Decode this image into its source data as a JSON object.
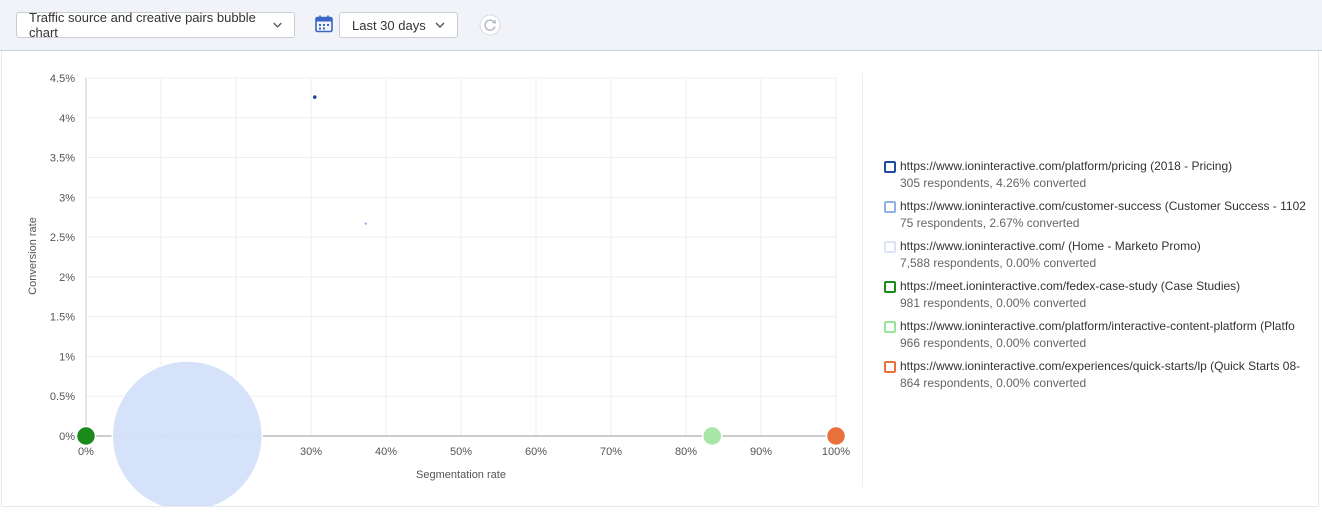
{
  "toolbar": {
    "report_select": "Traffic source and creative pairs bubble chart",
    "date_range": "Last 30 days"
  },
  "icons": {
    "report_chevron": "chevron-down-icon",
    "calendar": "calendar-icon",
    "date_chevron": "chevron-down-icon",
    "refresh": "refresh-icon"
  },
  "chart_data": {
    "type": "scatter",
    "xlabel": "Segmentation rate",
    "ylabel": "Conversion rate",
    "xlim": [
      0,
      100
    ],
    "ylim": [
      0,
      4.5
    ],
    "x_ticks": [
      {
        "value": 0,
        "label": "0%"
      },
      {
        "value": 30,
        "label": "30%"
      },
      {
        "value": 40,
        "label": "40%"
      },
      {
        "value": 50,
        "label": "50%"
      },
      {
        "value": 60,
        "label": "60%"
      },
      {
        "value": 70,
        "label": "70%"
      },
      {
        "value": 80,
        "label": "80%"
      },
      {
        "value": 90,
        "label": "90%"
      },
      {
        "value": 100,
        "label": "100%"
      }
    ],
    "x_grid": [
      0,
      10,
      20,
      30,
      40,
      50,
      60,
      70,
      80,
      90,
      100
    ],
    "y_ticks": [
      {
        "value": 0,
        "label": "0%"
      },
      {
        "value": 0.5,
        "label": "0.5%"
      },
      {
        "value": 1,
        "label": "1%"
      },
      {
        "value": 1.5,
        "label": "1.5%"
      },
      {
        "value": 2,
        "label": "2%"
      },
      {
        "value": 2.5,
        "label": "2.5%"
      },
      {
        "value": 3,
        "label": "3%"
      },
      {
        "value": 3.5,
        "label": "3.5%"
      },
      {
        "value": 4,
        "label": "4%"
      },
      {
        "value": 4.5,
        "label": "4.5%"
      }
    ],
    "grid": true,
    "legend_position": "right",
    "series": [
      {
        "name": "https://www.ioninteractive.com/platform/pricing (2018 - Pricing)",
        "stats": "305 respondents, 4.26% converted",
        "respondents": 305,
        "x": 30.5,
        "y": 4.26,
        "color": "#1e4aa0",
        "fill": "#1e4aa0"
      },
      {
        "name": "https://www.ioninteractive.com/customer-success (Customer Success - 1102",
        "stats": "75 respondents, 2.67% converted",
        "respondents": 75,
        "x": 37.3,
        "y": 2.67,
        "color": "#8fb1e8",
        "fill": "#8fb1e8"
      },
      {
        "name": "https://www.ioninteractive.com/ (Home - Marketo Promo)",
        "stats": "7,588 respondents, 0.00% converted",
        "respondents": 7588,
        "x": 13.5,
        "y": 0,
        "color": "#dbe4f7",
        "fill": "#d4e1f9"
      },
      {
        "name": "https://meet.ioninteractive.com/fedex-case-study (Case Studies)",
        "stats": "981 respondents, 0.00% converted",
        "respondents": 981,
        "x": 0,
        "y": 0,
        "color": "#1a8a1a",
        "fill": "#1a8a1a"
      },
      {
        "name": "https://www.ioninteractive.com/platform/interactive-content-platform (Platfo",
        "stats": "966 respondents, 0.00% converted",
        "respondents": 966,
        "x": 83.5,
        "y": 0,
        "color": "#9be39b",
        "fill": "#a6e6a6"
      },
      {
        "name": "https://www.ioninteractive.com/experiences/quick-starts/lp (Quick Starts 08-",
        "stats": "864 respondents, 0.00% converted",
        "respondents": 864,
        "x": 100,
        "y": 0,
        "color": "#e8703a",
        "fill": "#e8703a"
      }
    ]
  }
}
